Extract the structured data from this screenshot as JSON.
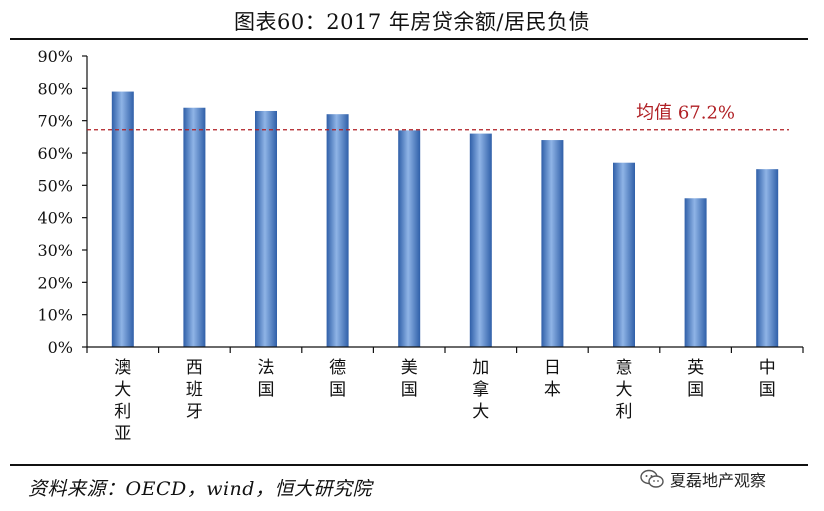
{
  "figure": {
    "title": "图表60：2017 年房贷余额/居民负债",
    "source": "资料来源：OECD，wind，恒大研究院",
    "watermark": "夏磊地产观察"
  },
  "chart_data": {
    "type": "bar",
    "categories": [
      "澳大利亚",
      "西班牙",
      "法国",
      "德国",
      "美国",
      "加拿大",
      "日本",
      "意大利",
      "英国",
      "中国"
    ],
    "values": [
      79,
      74,
      73,
      72,
      67,
      66,
      64,
      57,
      46,
      55
    ],
    "ylim": [
      0,
      90
    ],
    "yticks": [
      "0%",
      "10%",
      "20%",
      "30%",
      "40%",
      "50%",
      "60%",
      "70%",
      "80%",
      "90%"
    ],
    "average": {
      "label": "均值 67.2%",
      "value": 67.2,
      "color": "#b01f24"
    },
    "bar_color": "#4a7cc4",
    "grid": false,
    "legend": "none"
  }
}
